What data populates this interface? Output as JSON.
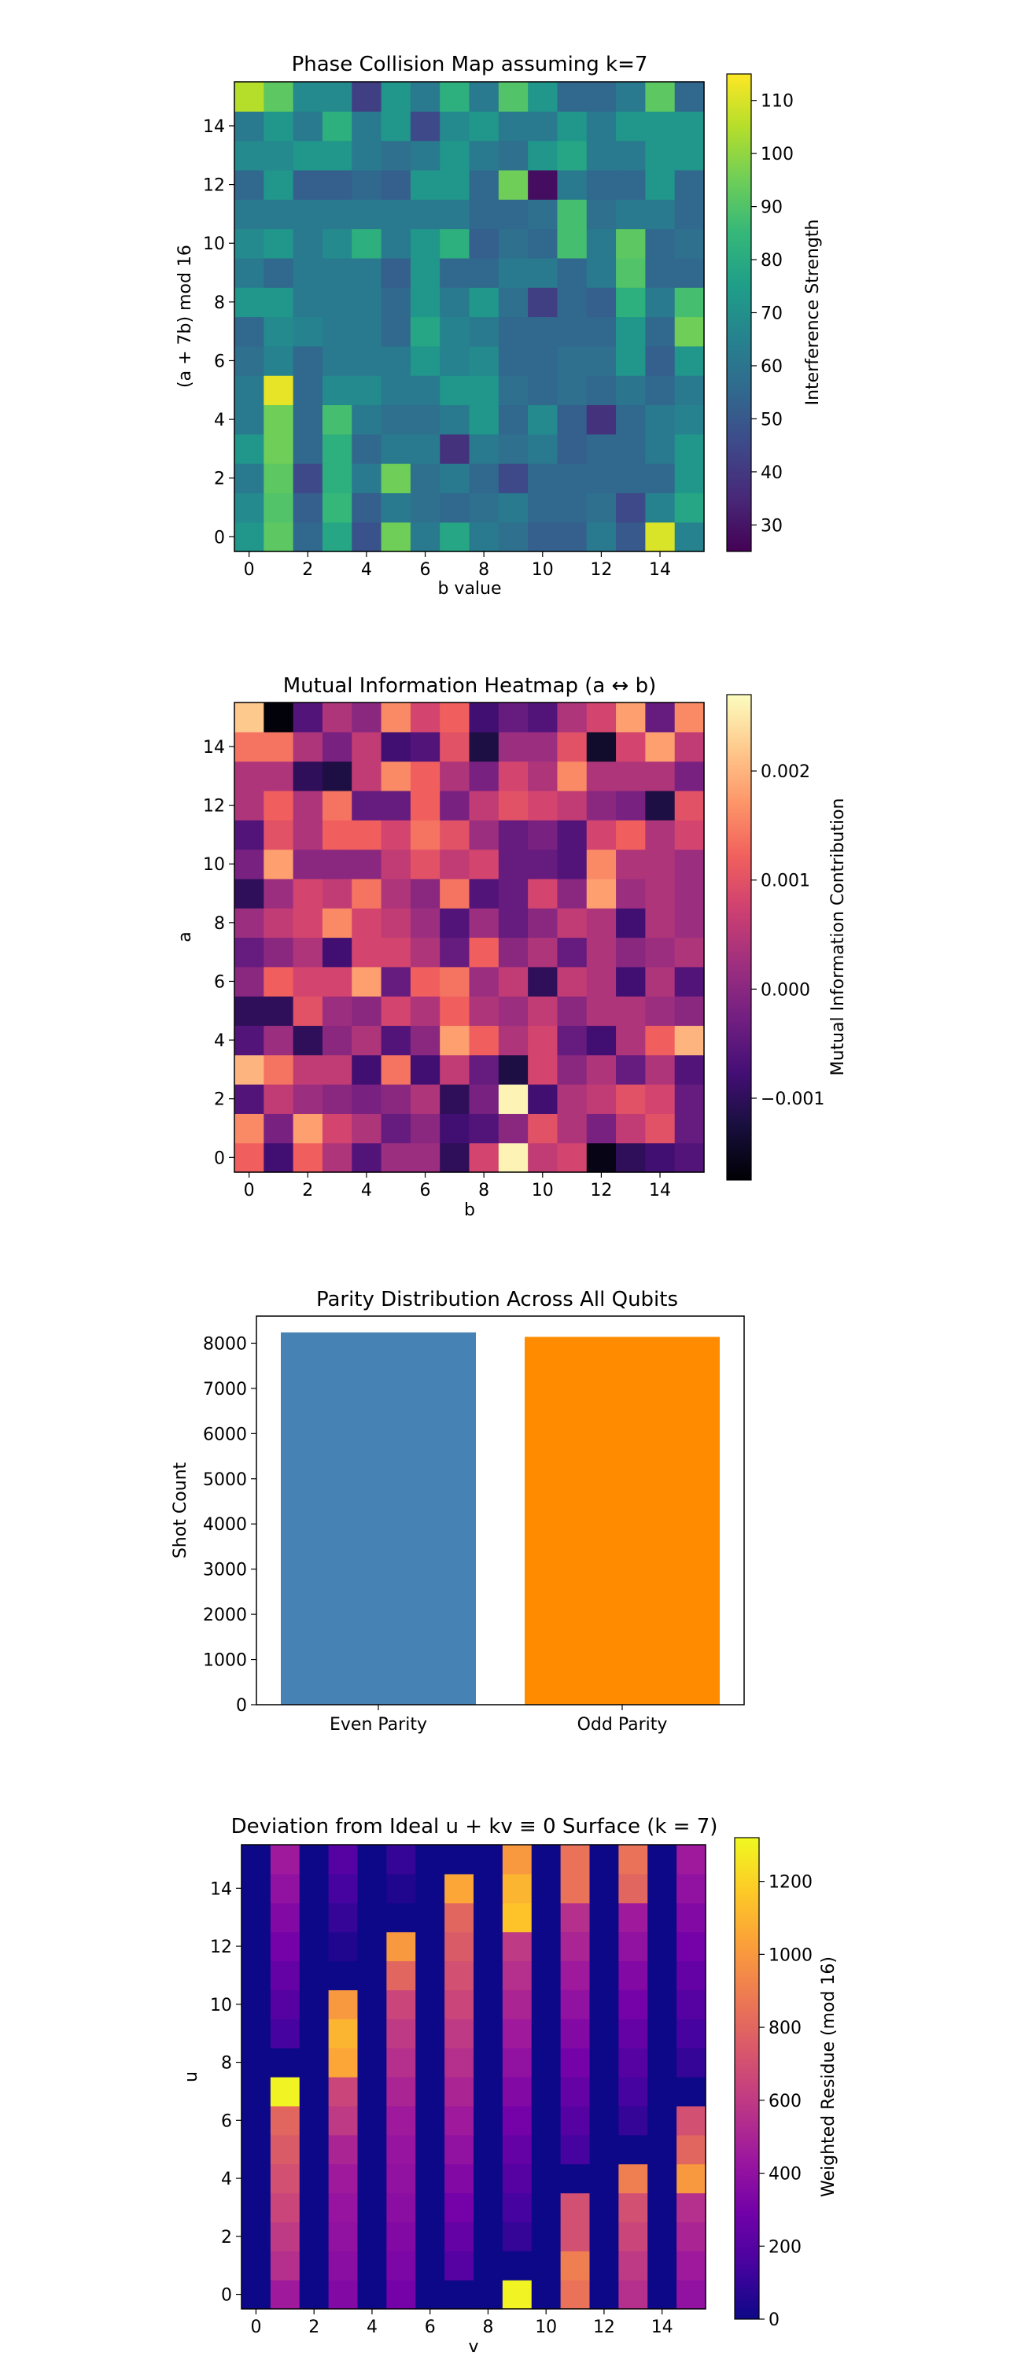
{
  "charts": {
    "c1": {
      "title": "Phase Collision Map assuming k=7",
      "xlabel": "b value",
      "ylabel": "(a + 7b) mod 16",
      "colorbar_label": "Interference Strength",
      "xticks": [
        "0",
        "2",
        "4",
        "6",
        "8",
        "10",
        "12",
        "14"
      ],
      "yticks": [
        "0",
        "2",
        "4",
        "6",
        "8",
        "10",
        "12",
        "14"
      ],
      "cticks": [
        "30",
        "40",
        "50",
        "60",
        "70",
        "80",
        "90",
        "100",
        "110"
      ]
    },
    "c2": {
      "title": "Mutual Information Heatmap (a ↔ b)",
      "xlabel": "b",
      "ylabel": "a",
      "colorbar_label": "Mutual Information Contribution",
      "xticks": [
        "0",
        "2",
        "4",
        "6",
        "8",
        "10",
        "12",
        "14"
      ],
      "yticks": [
        "0",
        "2",
        "4",
        "6",
        "8",
        "10",
        "12",
        "14"
      ],
      "cticks": [
        "−0.001",
        "0.000",
        "0.001",
        "0.002"
      ]
    },
    "c3": {
      "title": "Parity Distribution Across All Qubits",
      "ylabel": "Shot Count",
      "yticks": [
        "0",
        "1000",
        "2000",
        "3000",
        "4000",
        "5000",
        "6000",
        "7000",
        "8000"
      ]
    },
    "c4": {
      "title": "Deviation from Ideal u + kv ≡ 0 Surface (k = 7)",
      "xlabel": "v",
      "ylabel": "u",
      "colorbar_label": "Weighted Residue (mod 16)",
      "xticks": [
        "0",
        "2",
        "4",
        "6",
        "8",
        "10",
        "12",
        "14"
      ],
      "yticks": [
        "0",
        "2",
        "4",
        "6",
        "8",
        "10",
        "12",
        "14"
      ],
      "cticks": [
        "0",
        "200",
        "400",
        "600",
        "800",
        "1000",
        "1200"
      ]
    }
  },
  "colors": {
    "even": "#4682b4",
    "odd": "#ff8c00"
  },
  "chart_data": [
    {
      "type": "heatmap",
      "colormap": "viridis",
      "title": "Phase Collision Map assuming k=7",
      "xlabel": "b value",
      "ylabel": "(a + 7b) mod 16",
      "colorbar_label": "Interference Strength",
      "vmin": 25,
      "vmax": 115,
      "x": [
        0,
        1,
        2,
        3,
        4,
        5,
        6,
        7,
        8,
        9,
        10,
        11,
        12,
        13,
        14,
        15
      ],
      "y": [
        0,
        1,
        2,
        3,
        4,
        5,
        6,
        7,
        8,
        9,
        10,
        11,
        12,
        13,
        14,
        15
      ],
      "z": [
        [
          72,
          92,
          55,
          78,
          48,
          95,
          62,
          78,
          62,
          58,
          52,
          52,
          62,
          50,
          110,
          65
        ],
        [
          68,
          90,
          52,
          85,
          52,
          62,
          58,
          55,
          58,
          62,
          55,
          55,
          58,
          45,
          65,
          78
        ],
        [
          62,
          92,
          45,
          82,
          62,
          95,
          58,
          62,
          55,
          45,
          55,
          55,
          55,
          55,
          55,
          72
        ],
        [
          72,
          95,
          55,
          82,
          55,
          62,
          62,
          38,
          62,
          58,
          62,
          52,
          55,
          55,
          62,
          72
        ],
        [
          62,
          95,
          55,
          88,
          62,
          58,
          58,
          62,
          72,
          55,
          68,
          52,
          38,
          55,
          62,
          65
        ],
        [
          62,
          112,
          55,
          68,
          68,
          62,
          62,
          72,
          72,
          58,
          55,
          58,
          55,
          60,
          55,
          62
        ],
        [
          58,
          65,
          55,
          62,
          62,
          62,
          72,
          65,
          68,
          55,
          55,
          58,
          58,
          72,
          52,
          72
        ],
        [
          55,
          68,
          65,
          62,
          62,
          55,
          78,
          65,
          62,
          55,
          55,
          55,
          55,
          72,
          55,
          95
        ],
        [
          72,
          72,
          62,
          62,
          62,
          55,
          72,
          62,
          72,
          58,
          42,
          55,
          52,
          82,
          62,
          88
        ],
        [
          62,
          55,
          62,
          62,
          62,
          52,
          72,
          55,
          55,
          62,
          62,
          55,
          62,
          90,
          55,
          55
        ],
        [
          68,
          72,
          62,
          68,
          82,
          62,
          72,
          82,
          52,
          58,
          55,
          88,
          62,
          92,
          55,
          58
        ],
        [
          62,
          62,
          62,
          62,
          62,
          62,
          62,
          62,
          55,
          55,
          58,
          88,
          58,
          62,
          62,
          55
        ],
        [
          55,
          72,
          52,
          52,
          55,
          52,
          72,
          72,
          55,
          95,
          28,
          62,
          55,
          55,
          72,
          55
        ],
        [
          68,
          68,
          72,
          72,
          62,
          58,
          62,
          72,
          62,
          58,
          72,
          78,
          62,
          62,
          72,
          72
        ],
        [
          62,
          72,
          62,
          82,
          62,
          72,
          45,
          68,
          72,
          62,
          62,
          72,
          62,
          72,
          72,
          72
        ],
        [
          105,
          92,
          68,
          68,
          42,
          72,
          62,
          82,
          62,
          90,
          72,
          55,
          55,
          62,
          92,
          55
        ]
      ]
    },
    {
      "type": "heatmap",
      "colormap": "magma",
      "title": "Mutual Information Heatmap (a ↔ b)",
      "xlabel": "b",
      "ylabel": "a",
      "colorbar_label": "Mutual Information Contribution",
      "vmin": -0.00175,
      "vmax": 0.0027,
      "x": [
        0,
        1,
        2,
        3,
        4,
        5,
        6,
        7,
        8,
        9,
        10,
        11,
        12,
        13,
        14,
        15
      ],
      "y": [
        0,
        1,
        2,
        3,
        4,
        5,
        6,
        7,
        8,
        9,
        10,
        11,
        12,
        13,
        14,
        15
      ],
      "z": [
        [
          0.0012,
          -0.0008,
          0.0012,
          0.0004,
          -0.0006,
          0.0002,
          0.0002,
          -0.001,
          0.0008,
          0.0026,
          0.0006,
          0.0008,
          -0.0016,
          -0.001,
          -0.0008,
          -0.0006
        ],
        [
          0.0016,
          -0.0002,
          0.0018,
          0.0008,
          0.0004,
          -0.0004,
          0.0,
          -0.0008,
          -0.0006,
          0.0,
          0.001,
          0.0004,
          -0.0002,
          0.0006,
          0.001,
          -0.0004
        ],
        [
          -0.0006,
          0.0006,
          0.0002,
          0.0,
          -0.0002,
          0.0,
          0.0004,
          -0.001,
          -0.0002,
          0.0026,
          -0.0008,
          0.0004,
          0.0006,
          0.001,
          0.0008,
          -0.0004
        ],
        [
          0.002,
          0.0014,
          0.0006,
          0.0006,
          -0.0008,
          0.0014,
          -0.0008,
          0.0006,
          -0.0004,
          -0.0012,
          0.0008,
          0.0,
          0.0004,
          -0.0004,
          0.0004,
          -0.0006
        ],
        [
          -0.0006,
          0.0002,
          -0.001,
          0.0,
          0.0004,
          -0.0006,
          0.0,
          0.0018,
          0.0012,
          0.0004,
          0.0008,
          -0.0004,
          -0.0008,
          0.0004,
          0.0012,
          0.002
        ],
        [
          -0.001,
          -0.001,
          0.001,
          0.0002,
          0.0,
          0.0008,
          0.0004,
          0.0012,
          0.0004,
          0.0002,
          0.0006,
          0.0,
          0.0004,
          0.0004,
          0.0002,
          0.0
        ],
        [
          0.0,
          0.0012,
          0.0008,
          0.0008,
          0.0018,
          -0.0004,
          0.0012,
          0.0014,
          0.0002,
          0.0006,
          -0.001,
          0.0006,
          0.0004,
          -0.0008,
          0.0004,
          -0.0006
        ],
        [
          -0.0004,
          0.0,
          0.0004,
          -0.0008,
          0.0008,
          0.0008,
          0.0004,
          -0.0004,
          0.0012,
          0.0,
          0.0004,
          -0.0004,
          0.0004,
          0.0,
          0.0002,
          0.0004
        ],
        [
          0.0002,
          0.0006,
          0.0008,
          0.0016,
          0.0008,
          0.0006,
          0.0002,
          -0.0006,
          0.0002,
          -0.0004,
          0.0,
          0.0006,
          0.0004,
          -0.0008,
          0.0004,
          0.0002
        ],
        [
          -0.001,
          0.0002,
          0.0008,
          0.0006,
          0.0014,
          0.0004,
          0.0,
          0.0014,
          -0.0006,
          -0.0004,
          0.0008,
          0.0,
          0.0018,
          0.0002,
          0.0004,
          0.0002
        ],
        [
          -0.0002,
          0.0018,
          0.0,
          0.0,
          0.0,
          0.0006,
          0.001,
          0.0006,
          0.0008,
          -0.0004,
          -0.0004,
          -0.0006,
          0.0016,
          0.0004,
          0.0004,
          0.0002
        ],
        [
          -0.0006,
          0.001,
          0.0004,
          0.0012,
          0.0012,
          0.0008,
          0.0014,
          0.001,
          0.0002,
          -0.0004,
          -0.0002,
          -0.0006,
          0.0008,
          0.0012,
          0.0004,
          0.0008
        ],
        [
          0.0004,
          0.0012,
          0.0004,
          0.0014,
          -0.0004,
          -0.0004,
          0.0012,
          -0.0002,
          0.0006,
          0.001,
          0.0008,
          0.0006,
          0.0,
          -0.0002,
          -0.0012,
          0.001
        ],
        [
          0.0004,
          0.0004,
          -0.001,
          -0.0012,
          0.0006,
          0.0016,
          0.0012,
          0.0004,
          -0.0002,
          0.0008,
          0.0004,
          0.0016,
          0.0004,
          0.0004,
          0.0004,
          -0.0002
        ],
        [
          0.0014,
          0.0014,
          0.0004,
          -0.0002,
          0.0006,
          -0.0008,
          -0.0006,
          0.001,
          -0.0012,
          0.0002,
          0.0002,
          0.001,
          -0.0014,
          0.0008,
          0.0018,
          0.0006
        ],
        [
          0.0022,
          -0.0017,
          -0.0006,
          0.0004,
          0.0,
          0.0016,
          0.0008,
          0.0012,
          -0.0008,
          -0.0004,
          -0.0006,
          0.0004,
          0.0008,
          0.0018,
          -0.0004,
          0.0016
        ]
      ]
    },
    {
      "type": "bar",
      "title": "Parity Distribution Across All Qubits",
      "xlabel": "",
      "ylabel": "Shot Count",
      "categories": [
        "Even Parity",
        "Odd Parity"
      ],
      "values": [
        8240,
        8140
      ],
      "ylim": [
        0,
        8600
      ],
      "colors": [
        "#4682b4",
        "#ff8c00"
      ]
    },
    {
      "type": "heatmap",
      "colormap": "plasma",
      "title": "Deviation from Ideal u + kv ≡ 0 Surface (k = 7)",
      "xlabel": "v",
      "ylabel": "u",
      "colorbar_label": "Weighted Residue (mod 16)",
      "vmin": 0,
      "vmax": 1320,
      "x": [
        0,
        1,
        2,
        3,
        4,
        5,
        6,
        7,
        8,
        9,
        10,
        11,
        12,
        13,
        14,
        15
      ],
      "y": [
        0,
        1,
        2,
        3,
        4,
        5,
        6,
        7,
        8,
        9,
        10,
        11,
        12,
        13,
        14,
        15
      ],
      "z": [
        [
          0,
          450,
          0,
          350,
          0,
          300,
          0,
          0,
          0,
          1300,
          0,
          850,
          0,
          550,
          0,
          400
        ],
        [
          0,
          550,
          0,
          380,
          0,
          330,
          0,
          200,
          0,
          0,
          0,
          900,
          0,
          600,
          0,
          450
        ],
        [
          0,
          600,
          0,
          400,
          0,
          350,
          0,
          250,
          0,
          100,
          0,
          700,
          0,
          650,
          0,
          500
        ],
        [
          0,
          650,
          0,
          420,
          0,
          380,
          0,
          300,
          0,
          150,
          0,
          700,
          0,
          700,
          0,
          550
        ],
        [
          0,
          700,
          0,
          450,
          0,
          400,
          0,
          350,
          0,
          200,
          0,
          0,
          0,
          900,
          0,
          1000
        ],
        [
          0,
          750,
          0,
          500,
          0,
          420,
          0,
          400,
          0,
          250,
          0,
          150,
          0,
          0,
          0,
          800
        ],
        [
          0,
          800,
          0,
          600,
          0,
          450,
          0,
          450,
          0,
          300,
          0,
          200,
          0,
          100,
          0,
          700
        ],
        [
          0,
          1300,
          0,
          650,
          0,
          500,
          0,
          500,
          0,
          350,
          0,
          250,
          0,
          150,
          0,
          0
        ],
        [
          0,
          0,
          0,
          1050,
          0,
          550,
          0,
          550,
          0,
          400,
          0,
          300,
          0,
          200,
          0,
          100
        ],
        [
          0,
          150,
          0,
          1100,
          0,
          600,
          0,
          600,
          0,
          450,
          0,
          350,
          0,
          250,
          0,
          150
        ],
        [
          0,
          200,
          0,
          1000,
          0,
          650,
          0,
          650,
          0,
          500,
          0,
          400,
          0,
          300,
          0,
          200
        ],
        [
          0,
          250,
          0,
          0,
          0,
          800,
          0,
          700,
          0,
          550,
          0,
          450,
          0,
          350,
          0,
          250
        ],
        [
          0,
          300,
          0,
          50,
          0,
          1000,
          0,
          750,
          0,
          600,
          0,
          500,
          0,
          400,
          0,
          300
        ],
        [
          0,
          350,
          0,
          100,
          0,
          0,
          0,
          800,
          0,
          1150,
          0,
          550,
          0,
          450,
          0,
          350
        ],
        [
          0,
          400,
          0,
          150,
          0,
          50,
          0,
          1050,
          0,
          1100,
          0,
          850,
          0,
          800,
          0,
          400
        ],
        [
          0,
          450,
          0,
          200,
          0,
          100,
          0,
          0,
          0,
          1000,
          0,
          850,
          0,
          850,
          0,
          450
        ]
      ]
    }
  ]
}
